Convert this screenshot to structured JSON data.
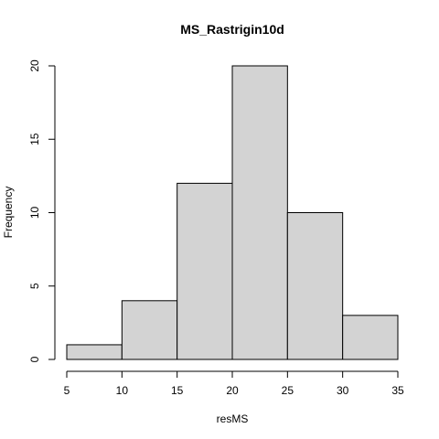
{
  "chart_data": {
    "type": "bar",
    "title": "MS_Rastrigin10d",
    "xlabel": "resMS",
    "ylabel": "Frequency",
    "bins": [
      {
        "from": 5,
        "to": 10,
        "count": 1
      },
      {
        "from": 10,
        "to": 15,
        "count": 4
      },
      {
        "from": 15,
        "to": 20,
        "count": 12
      },
      {
        "from": 20,
        "to": 25,
        "count": 20
      },
      {
        "from": 25,
        "to": 30,
        "count": 10
      },
      {
        "from": 30,
        "to": 35,
        "count": 3
      }
    ],
    "xlim": [
      5,
      35
    ],
    "ylim": [
      0,
      20
    ],
    "xticks": [
      5,
      10,
      15,
      20,
      25,
      30,
      35
    ],
    "yticks": [
      0,
      5,
      10,
      15,
      20
    ],
    "grid": false,
    "bar_color": "#d3d3d3"
  }
}
